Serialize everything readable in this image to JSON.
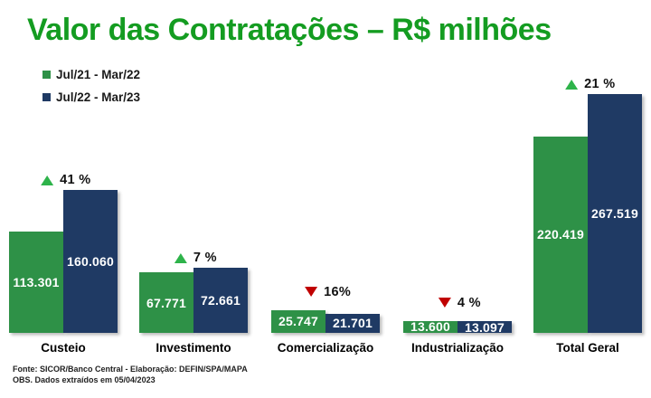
{
  "title": "Valor das Contratações – R$ milhões",
  "chart_data": {
    "type": "bar",
    "title": "Valor das Contratações – R$ milhões",
    "xlabel": "",
    "ylabel": "",
    "unit": "R$ milhões",
    "grid": false,
    "legend_position": "top-left",
    "ylim": [
      0,
      267519
    ],
    "categories": [
      "Custeio",
      "Investimento",
      "Comercialização",
      "Industrialização",
      "Total Geral"
    ],
    "series": [
      {
        "name": "Jul/21 - Mar/22",
        "color": "#2E9147",
        "values": [
          113301,
          67771,
          25747,
          13600,
          220419
        ],
        "labels": [
          "113.301",
          "67.771",
          "25.747",
          "13.600",
          "220.419"
        ]
      },
      {
        "name": "Jul/22 - Mar/23",
        "color": "#1F3A64",
        "values": [
          160060,
          72661,
          21701,
          13097,
          267519
        ],
        "labels": [
          "160.060",
          "72.661",
          "21.701",
          "13.097",
          "267.519"
        ]
      }
    ],
    "annotations": [
      {
        "direction": "up",
        "label": "41 %"
      },
      {
        "direction": "up",
        "label": "7 %"
      },
      {
        "direction": "down",
        "label": "16%"
      },
      {
        "direction": "down",
        "label": "4 %"
      },
      {
        "direction": "up",
        "label": "21 %"
      }
    ]
  },
  "footer": {
    "source": "Fonte: SICOR/Banco Central - Elaboração: DEFIN/SPA/MAPA",
    "note": "OBS. Dados extraídos em 05/04/2023"
  },
  "colors": {
    "title_green": "#149C21",
    "bar_green": "#2E9147",
    "bar_navy": "#1F3A64",
    "up_green": "#2EB34A",
    "down_red": "#C00000"
  }
}
